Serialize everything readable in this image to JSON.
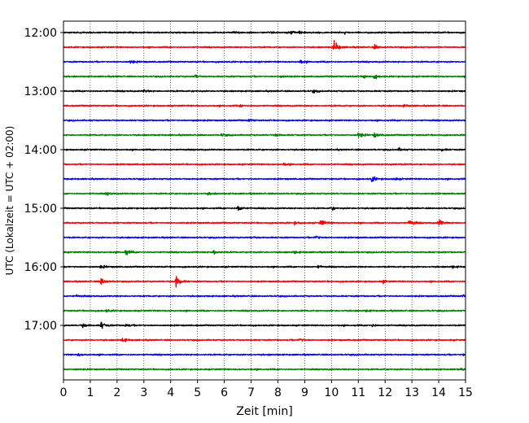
{
  "chart_data": {
    "type": "line",
    "title": "",
    "xlabel": "Zeit  [min]",
    "ylabel": "UTC (Lokalzeit = UTC + 02:00)",
    "xlim": [
      0,
      15
    ],
    "xticks": [
      0,
      1,
      2,
      3,
      4,
      5,
      6,
      7,
      8,
      9,
      10,
      11,
      12,
      13,
      14,
      15
    ],
    "xtick_labels": [
      "0",
      "1",
      "2",
      "3",
      "4",
      "5",
      "6",
      "7",
      "8",
      "9",
      "10",
      "11",
      "12",
      "13",
      "14",
      "15"
    ],
    "grid": "vertical dotted",
    "row_interval_minutes": 15,
    "ytick_labels": [
      {
        "row": 0,
        "label": "12:00"
      },
      {
        "row": 4,
        "label": "13:00"
      },
      {
        "row": 8,
        "label": "14:00"
      },
      {
        "row": 12,
        "label": "15:00"
      },
      {
        "row": 16,
        "label": "16:00"
      },
      {
        "row": 20,
        "label": "17:00"
      }
    ],
    "colors": [
      "#000000",
      "#ff0000",
      "#0000ff",
      "#008000"
    ],
    "rows": [
      {
        "start": "12:00",
        "events": [
          [
            8.5,
            0.3
          ],
          [
            8.8,
            0.25
          ],
          [
            6.3,
            0.2
          ]
        ]
      },
      {
        "start": "12:15",
        "events": [
          [
            10.1,
            1.0
          ],
          [
            11.6,
            0.35
          ]
        ]
      },
      {
        "start": "12:30",
        "events": [
          [
            8.8,
            0.35
          ],
          [
            2.5,
            0.25
          ]
        ]
      },
      {
        "start": "12:45",
        "events": [
          [
            4.9,
            0.25
          ],
          [
            11.2,
            0.35
          ],
          [
            11.6,
            0.3
          ],
          [
            8.1,
            0.22
          ]
        ]
      },
      {
        "start": "13:00",
        "events": [
          [
            3.0,
            0.2
          ],
          [
            9.3,
            0.18
          ]
        ]
      },
      {
        "start": "13:15",
        "events": [
          [
            6.6,
            0.18
          ],
          [
            12.7,
            0.15
          ]
        ]
      },
      {
        "start": "13:30",
        "events": [
          [
            6.9,
            0.18
          ],
          [
            4.8,
            0.16
          ]
        ]
      },
      {
        "start": "13:45",
        "events": [
          [
            11.0,
            0.5
          ],
          [
            11.6,
            0.35
          ],
          [
            7.9,
            0.22
          ],
          [
            5.9,
            0.22
          ]
        ]
      },
      {
        "start": "14:00",
        "events": [
          [
            12.5,
            0.25
          ],
          [
            14.1,
            0.2
          ]
        ]
      },
      {
        "start": "14:15",
        "events": [
          [
            12.2,
            0.22
          ],
          [
            8.2,
            0.18
          ]
        ]
      },
      {
        "start": "14:30",
        "events": [
          [
            11.5,
            0.45
          ],
          [
            12.3,
            0.25
          ]
        ]
      },
      {
        "start": "14:45",
        "events": [
          [
            1.6,
            0.25
          ],
          [
            5.4,
            0.2
          ]
        ]
      },
      {
        "start": "15:00",
        "events": [
          [
            6.5,
            0.6
          ],
          [
            10.0,
            0.25
          ]
        ]
      },
      {
        "start": "15:15",
        "events": [
          [
            9.6,
            0.55
          ],
          [
            12.9,
            0.7
          ],
          [
            14.0,
            0.6
          ],
          [
            8.6,
            0.2
          ]
        ]
      },
      {
        "start": "15:30",
        "events": [
          [
            9.4,
            0.35
          ],
          [
            7.0,
            0.16
          ]
        ]
      },
      {
        "start": "15:45",
        "events": [
          [
            2.3,
            0.55
          ],
          [
            5.6,
            0.45
          ],
          [
            8.6,
            0.2
          ]
        ]
      },
      {
        "start": "16:00",
        "events": [
          [
            1.4,
            0.25
          ],
          [
            9.5,
            0.2
          ],
          [
            14.5,
            0.18
          ]
        ]
      },
      {
        "start": "16:15",
        "events": [
          [
            1.4,
            0.7
          ],
          [
            4.2,
            1.0
          ],
          [
            11.9,
            0.22
          ]
        ]
      },
      {
        "start": "16:30",
        "events": [
          [
            0.5,
            0.18
          ],
          [
            14.9,
            0.15
          ]
        ]
      },
      {
        "start": "16:45",
        "events": [
          [
            1.6,
            0.18
          ],
          [
            11.3,
            0.15
          ]
        ]
      },
      {
        "start": "17:00",
        "events": [
          [
            1.4,
            0.55
          ],
          [
            0.7,
            0.35
          ],
          [
            2.3,
            0.3
          ],
          [
            11.5,
            0.22
          ]
        ]
      },
      {
        "start": "17:15",
        "events": [
          [
            2.2,
            0.35
          ],
          [
            8.8,
            0.3
          ]
        ]
      },
      {
        "start": "17:30",
        "events": [
          [
            0.55,
            0.22
          ],
          [
            14.9,
            0.2
          ]
        ]
      },
      {
        "start": "17:45",
        "events": [
          [
            0.4,
            0.12
          ],
          [
            14.7,
            0.12
          ]
        ]
      }
    ]
  }
}
